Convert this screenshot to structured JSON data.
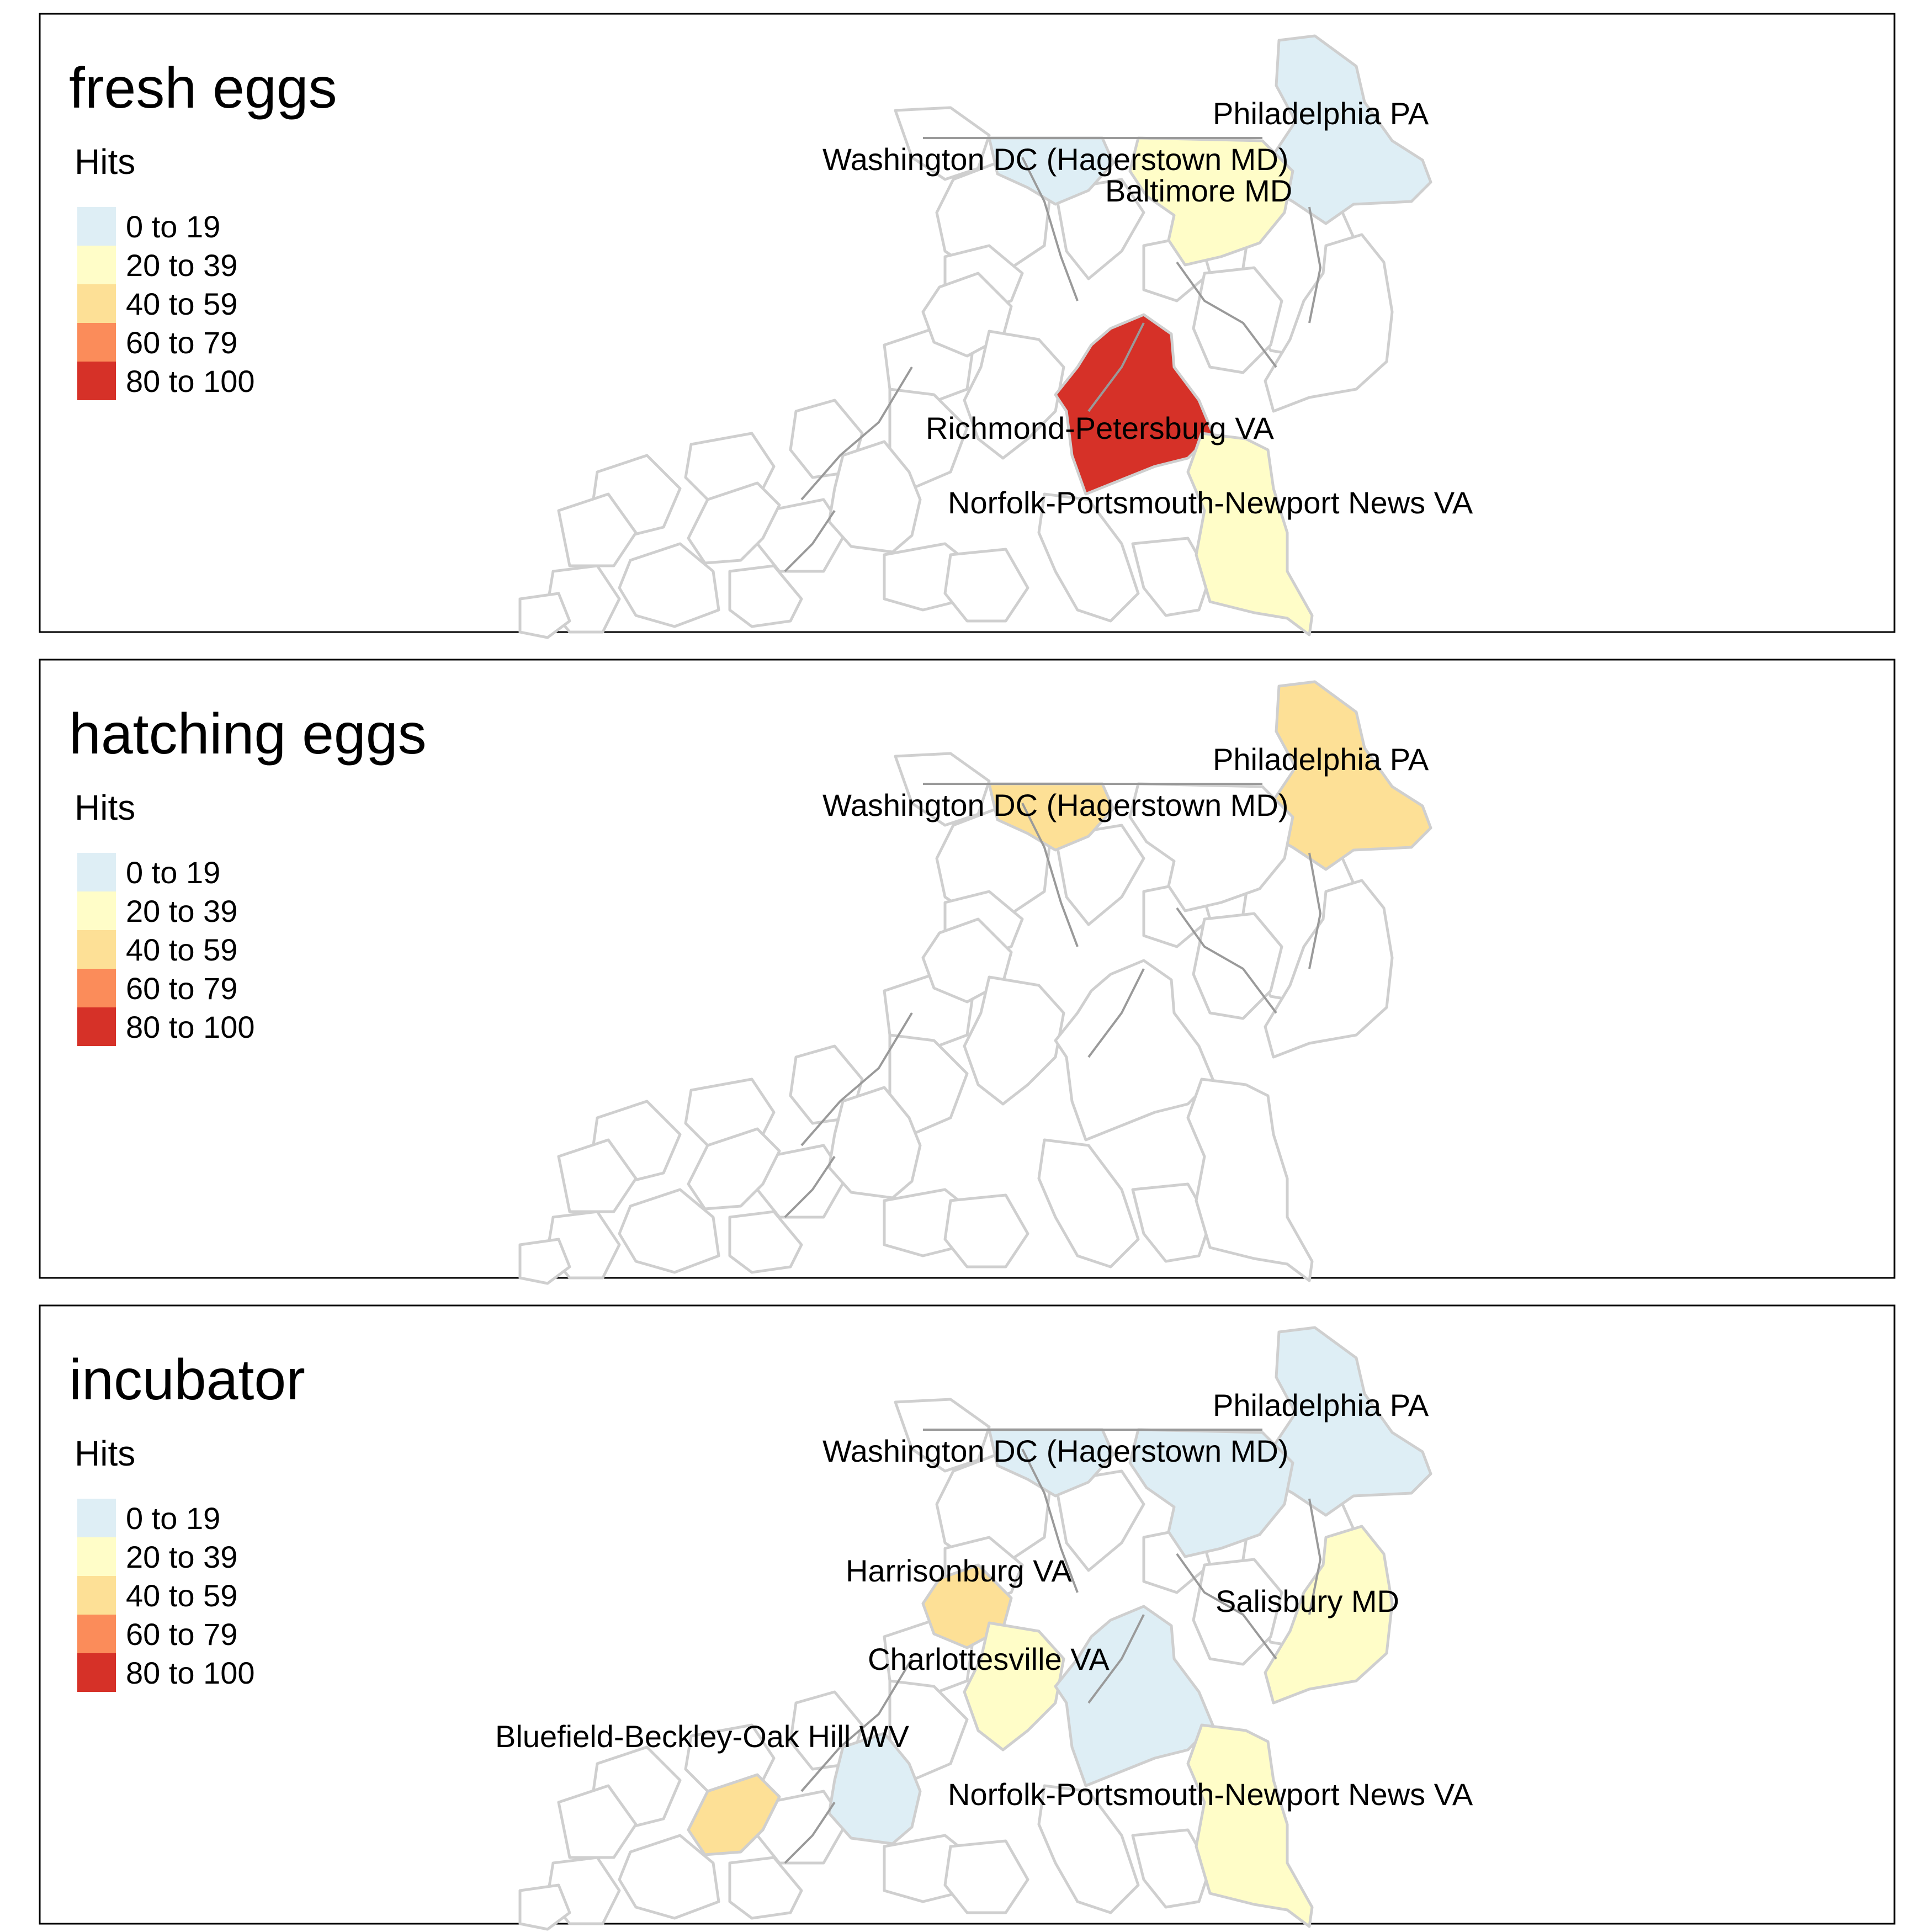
{
  "legend_title": "Hits",
  "legend_bins": [
    {
      "label": "0 to 19",
      "color": "#deeef5"
    },
    {
      "label": "20 to 39",
      "color": "#fffdc8"
    },
    {
      "label": "40 to 59",
      "color": "#fde096"
    },
    {
      "label": "60 to 79",
      "color": "#fb8c5a"
    },
    {
      "label": "80 to 100",
      "color": "#d63128"
    }
  ],
  "panels": [
    {
      "title": "fresh eggs",
      "regions": [
        {
          "key": "philadelphia",
          "label": "Philadelphia PA",
          "bin": 0
        },
        {
          "key": "washington",
          "label": "Washington DC (Hagerstown MD)",
          "bin": 0
        },
        {
          "key": "baltimore",
          "label": "Baltimore MD",
          "bin": 1
        },
        {
          "key": "richmond",
          "label": "Richmond-Petersburg VA",
          "bin": 4
        },
        {
          "key": "norfolk",
          "label": "Norfolk-Portsmouth-Newport News VA",
          "bin": 1
        }
      ]
    },
    {
      "title": "hatching eggs",
      "regions": [
        {
          "key": "philadelphia",
          "label": "Philadelphia PA",
          "bin": 2
        },
        {
          "key": "washington",
          "label": "Washington DC (Hagerstown MD)",
          "bin": 2
        }
      ]
    },
    {
      "title": "incubator",
      "regions": [
        {
          "key": "philadelphia",
          "label": "Philadelphia PA",
          "bin": 0
        },
        {
          "key": "washington",
          "label": "Washington DC (Hagerstown MD)",
          "bin": 0
        },
        {
          "key": "baltimore",
          "label": "",
          "bin": 0
        },
        {
          "key": "salisbury",
          "label": "Salisbury MD",
          "bin": 1
        },
        {
          "key": "harrisonburg",
          "label": "Harrisonburg VA",
          "bin": 2
        },
        {
          "key": "charlottesville",
          "label": "Charlottesville VA",
          "bin": 1
        },
        {
          "key": "richmond",
          "label": "",
          "bin": 0
        },
        {
          "key": "norfolk",
          "label": "Norfolk-Portsmouth-Newport News VA",
          "bin": 1
        },
        {
          "key": "bluefield",
          "label": "Bluefield-Beckley-Oak Hill WV",
          "bin": 2
        },
        {
          "key": "roanoke",
          "label": "",
          "bin": 0
        }
      ]
    }
  ]
}
